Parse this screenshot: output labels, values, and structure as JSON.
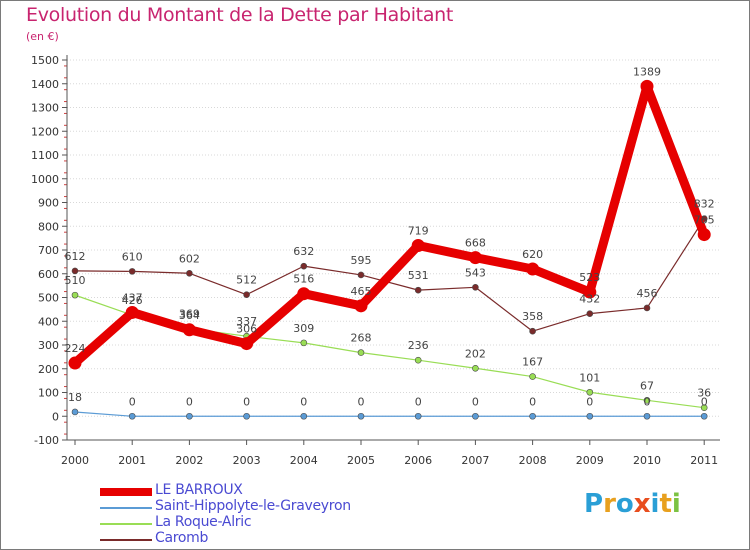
{
  "header": {
    "title": "Evolution du Montant de la Dette par Habitant",
    "subtitle": "(en €)"
  },
  "colors": {
    "title": "#c8246f",
    "legend_text": "#4a4ad2",
    "axis": "#555555",
    "grid": "#d8d8d8"
  },
  "chart_data": {
    "type": "line",
    "title": "Evolution du Montant de la Dette par Habitant",
    "subtitle": "(en €)",
    "xlabel": "",
    "ylabel": "",
    "x": [
      "2000",
      "2001",
      "2002",
      "2003",
      "2004",
      "2005",
      "2006",
      "2007",
      "2008",
      "2009",
      "2010",
      "2011"
    ],
    "ylim": [
      -100,
      1500
    ],
    "yticks": [
      -100,
      0,
      100,
      200,
      300,
      400,
      500,
      600,
      700,
      800,
      900,
      1000,
      1100,
      1200,
      1300,
      1400,
      1500
    ],
    "grid": "horizontal",
    "legend_position": "bottom-left",
    "series": [
      {
        "name": "LE BARROUX",
        "color": "#e60000",
        "values": [
          224,
          437,
          364,
          306,
          516,
          465,
          719,
          668,
          620,
          523,
          1389,
          765
        ]
      },
      {
        "name": "Saint-Hippolyte-le-Graveyron",
        "color": "#5b9bd5",
        "values": [
          18,
          0,
          0,
          0,
          0,
          0,
          0,
          0,
          0,
          0,
          0,
          0
        ]
      },
      {
        "name": "La Roque-Alric",
        "color": "#99dd55",
        "values": [
          510,
          426,
          369,
          337,
          309,
          268,
          236,
          202,
          167,
          101,
          67,
          36
        ]
      },
      {
        "name": "Caromb",
        "color": "#7a2b2b",
        "values": [
          612,
          610,
          602,
          512,
          632,
          595,
          531,
          543,
          358,
          432,
          456,
          832
        ]
      }
    ]
  },
  "legend": {
    "items": [
      {
        "label": "LE BARROUX",
        "color": "#e60000"
      },
      {
        "label": "Saint-Hippolyte-le-Graveyron",
        "color": "#5b9bd5"
      },
      {
        "label": "La Roque-Alric",
        "color": "#99dd55"
      },
      {
        "label": "Caromb",
        "color": "#7a2b2b"
      }
    ]
  },
  "logo": {
    "letters": [
      "P",
      "r",
      "o",
      "x",
      "i",
      "t",
      "i"
    ],
    "colors": [
      "#2a9fd6",
      "#e8a01e",
      "#2a9fd6",
      "#e84d1e",
      "#2a9fd6",
      "#e8a01e",
      "#7cc242"
    ]
  }
}
